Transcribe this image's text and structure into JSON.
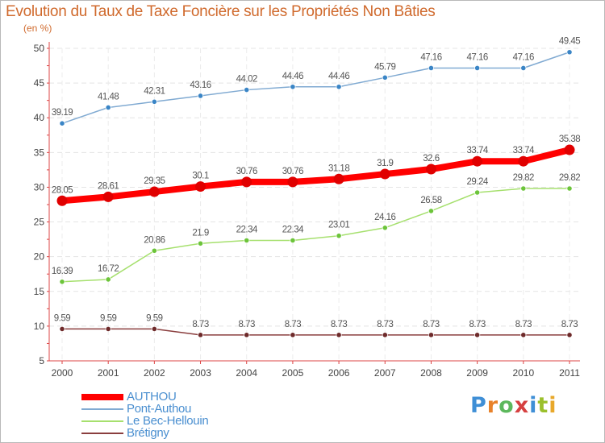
{
  "title": "Evolution du Taux de Taxe Foncière sur les Propriétés Non Bâties",
  "subtitle": "(en %)",
  "logo": {
    "text": "Proxiti",
    "letters": [
      "P",
      "r",
      "o",
      "x",
      "i",
      "t",
      "i"
    ],
    "colors": [
      "#3f8fd6",
      "#e8822a",
      "#5cb85c",
      "#d64040",
      "#3f8fd6",
      "#9bc02c",
      "#e8a82a"
    ]
  },
  "chart_data": {
    "type": "line",
    "title": "Evolution du Taux de Taxe Foncière sur les Propriétés Non Bâties",
    "ylabel": "(en %)",
    "xlabel": "",
    "ylim": [
      5,
      50
    ],
    "yticks": [
      5,
      10,
      15,
      20,
      25,
      30,
      35,
      40,
      45,
      50
    ],
    "categories": [
      "2000",
      "2001",
      "2002",
      "2003",
      "2004",
      "2005",
      "2006",
      "2007",
      "2008",
      "2009",
      "2010",
      "2011"
    ],
    "grid": true,
    "legend": "bottom-left",
    "series": [
      {
        "name": "Pont-Authou",
        "color": "#80aad2",
        "marker": "#3a85c6",
        "values": [
          39.19,
          41.48,
          42.31,
          43.16,
          44.02,
          44.46,
          44.46,
          45.79,
          47.16,
          47.16,
          47.16,
          49.45
        ],
        "labels": [
          "39.19",
          "41.48",
          "42.31",
          "43.16",
          "44.02",
          "44.46",
          "44.46",
          "45.79",
          "47.16",
          "47.16",
          "47.16",
          "49.45"
        ]
      },
      {
        "name": "AUTHOU",
        "color": "#ff0000",
        "marker": "#e00000",
        "values": [
          28.05,
          28.61,
          29.35,
          30.1,
          30.76,
          30.76,
          31.18,
          31.9,
          32.6,
          33.74,
          33.74,
          35.38
        ],
        "labels": [
          "28.05",
          "28.61",
          "29.35",
          "30.1",
          "30.76",
          "30.76",
          "31.18",
          "31.9",
          "32.6",
          "33.74",
          "33.74",
          "35.38"
        ]
      },
      {
        "name": "Le Bec-Hellouin",
        "color": "#a6e06e",
        "marker": "#6cc43a",
        "values": [
          16.39,
          16.72,
          20.86,
          21.9,
          22.34,
          22.34,
          23.01,
          24.16,
          26.58,
          29.24,
          29.82,
          29.82
        ],
        "labels": [
          "16.39",
          "16.72",
          "20.86",
          "21.9",
          "22.34",
          "22.34",
          "23.01",
          "24.16",
          "26.58",
          "29.24",
          "29.82",
          "29.82"
        ]
      },
      {
        "name": "Brétigny",
        "color": "#8a3e3e",
        "marker": "#6e2a2a",
        "values": [
          9.59,
          9.59,
          9.59,
          8.73,
          8.73,
          8.73,
          8.73,
          8.73,
          8.73,
          8.73,
          8.73,
          8.73
        ],
        "labels": [
          "9.59",
          "9.59",
          "9.59",
          "8.73",
          "8.73",
          "8.73",
          "8.73",
          "8.73",
          "8.73",
          "8.73",
          "8.73",
          "8.73"
        ]
      }
    ],
    "legend_items": [
      {
        "name": "AUTHOU",
        "color": "#ff0000"
      },
      {
        "name": "Pont-Authou",
        "color": "#80aad2"
      },
      {
        "name": "Le Bec-Hellouin",
        "color": "#a6e06e"
      },
      {
        "name": "Brétigny",
        "color": "#8a3e3e"
      }
    ]
  }
}
